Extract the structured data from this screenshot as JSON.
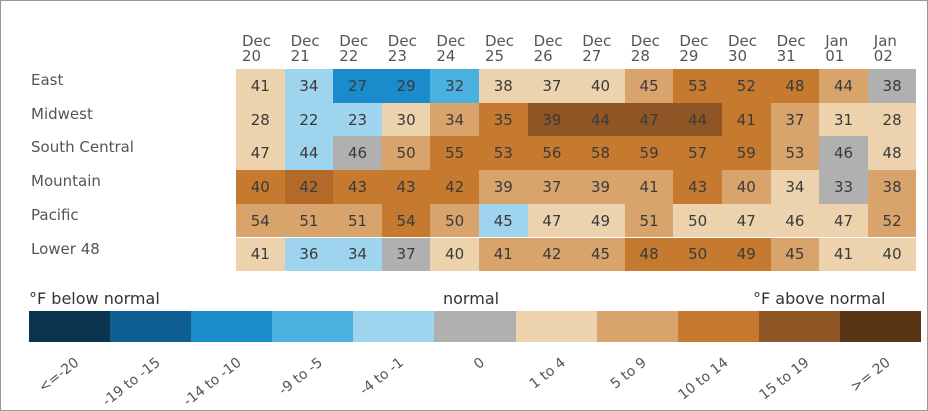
{
  "chart_data": {
    "type": "heatmap",
    "categories": [
      "Dec 20",
      "Dec 21",
      "Dec 22",
      "Dec 23",
      "Dec 24",
      "Dec 25",
      "Dec 26",
      "Dec 27",
      "Dec 28",
      "Dec 29",
      "Dec 30",
      "Dec 31",
      "Jan 01",
      "Jan 02"
    ],
    "series": [
      {
        "name": "East",
        "values": [
          41,
          34,
          27,
          29,
          32,
          38,
          37,
          40,
          45,
          53,
          52,
          48,
          44,
          38
        ],
        "colors": [
          "#ecd3ae",
          "#9fd4ef",
          "#1a8ccc",
          "#1a8ccc",
          "#4ab0e0",
          "#ecd3ae",
          "#ecd3ae",
          "#ecd3ae",
          "#d9a46b",
          "#c57a30",
          "#c57a30",
          "#c57a30",
          "#d9a46b",
          "#b0b0b0"
        ]
      },
      {
        "name": "Midwest",
        "values": [
          28,
          22,
          23,
          30,
          34,
          35,
          39,
          44,
          47,
          44,
          41,
          37,
          31,
          28
        ],
        "colors": [
          "#ecd3ae",
          "#9fd4ef",
          "#9fd4ef",
          "#ecd3ae",
          "#d9a46b",
          "#c57a30",
          "#8f5524",
          "#8f5524",
          "#8f5524",
          "#8f5524",
          "#c57a30",
          "#d9a46b",
          "#ecd3ae",
          "#ecd3ae"
        ]
      },
      {
        "name": "South Central",
        "values": [
          47,
          44,
          46,
          50,
          55,
          53,
          56,
          58,
          59,
          57,
          59,
          53,
          46,
          48
        ],
        "colors": [
          "#ecd3ae",
          "#9fd4ef",
          "#b0b0b0",
          "#d9a46b",
          "#c57a30",
          "#c57a30",
          "#c57a30",
          "#c57a30",
          "#c57a30",
          "#c57a30",
          "#c57a30",
          "#d9a46b",
          "#b0b0b0",
          "#ecd3ae"
        ]
      },
      {
        "name": "Mountain",
        "values": [
          40,
          42,
          43,
          43,
          42,
          39,
          37,
          39,
          41,
          43,
          40,
          34,
          33,
          38
        ],
        "colors": [
          "#c57a30",
          "#b36a28",
          "#c57a30",
          "#c57a30",
          "#c57a30",
          "#d9a46b",
          "#d9a46b",
          "#d9a46b",
          "#d9a46b",
          "#c57a30",
          "#d9a46b",
          "#ecd3ae",
          "#b0b0b0",
          "#d9a46b"
        ]
      },
      {
        "name": "Pacific",
        "values": [
          54,
          51,
          51,
          54,
          50,
          45,
          47,
          49,
          51,
          50,
          47,
          46,
          47,
          52
        ],
        "colors": [
          "#d9a46b",
          "#d9a46b",
          "#d9a46b",
          "#c57a30",
          "#d9a46b",
          "#9fd4ef",
          "#ecd3ae",
          "#ecd3ae",
          "#d9a46b",
          "#ecd3ae",
          "#ecd3ae",
          "#ecd3ae",
          "#ecd3ae",
          "#d9a46b"
        ]
      },
      {
        "name": "Lower 48",
        "values": [
          41,
          36,
          34,
          37,
          40,
          41,
          42,
          45,
          48,
          50,
          49,
          45,
          41,
          40
        ],
        "colors": [
          "#ecd3ae",
          "#9fd4ef",
          "#9fd4ef",
          "#b0b0b0",
          "#ecd3ae",
          "#d9a46b",
          "#d9a46b",
          "#d9a46b",
          "#c57a30",
          "#c57a30",
          "#c57a30",
          "#d9a46b",
          "#ecd3ae",
          "#ecd3ae"
        ]
      }
    ],
    "legend_titles": [
      "°F below normal",
      "normal",
      "°F above normal"
    ],
    "legend": [
      {
        "label": "<=-20",
        "color": "#0b3450"
      },
      {
        "label": "-19 to -15",
        "color": "#0f5f93"
      },
      {
        "label": "-14 to -10",
        "color": "#1a8ccc"
      },
      {
        "label": "-9 to -5",
        "color": "#4ab0e0"
      },
      {
        "label": "-4 to -1",
        "color": "#9fd4ef"
      },
      {
        "label": "0",
        "color": "#b0b0b0"
      },
      {
        "label": "1 to 4",
        "color": "#ecd3ae"
      },
      {
        "label": "5 to 9",
        "color": "#d9a46b"
      },
      {
        "label": "10 to 14",
        "color": "#c57a30"
      },
      {
        "label": "15 to 19",
        "color": "#8f5524"
      },
      {
        "label": ">= 20",
        "color": "#5a3515"
      }
    ]
  }
}
